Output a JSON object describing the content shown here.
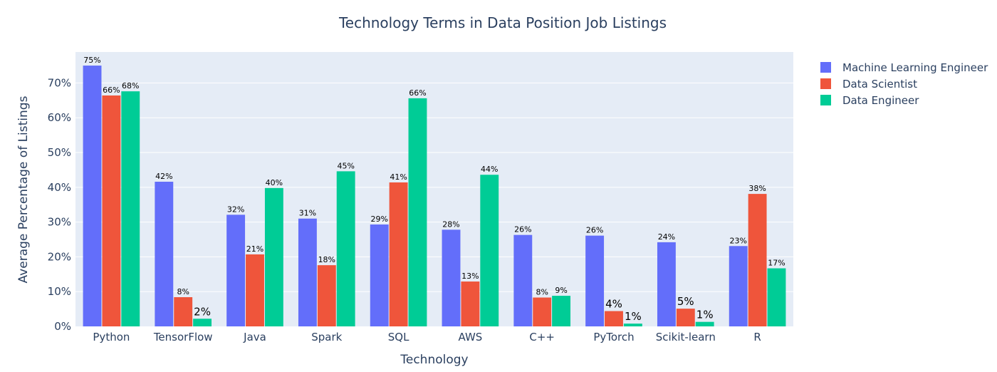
{
  "chart_data": {
    "type": "bar",
    "title": "Technology Terms in Data Position Job Listings",
    "xlabel": "Technology",
    "ylabel": "Average Percentage of Listings",
    "categories": [
      "Python",
      "TensorFlow",
      "Java",
      "Spark",
      "SQL",
      "AWS",
      "C++",
      "PyTorch",
      "Scikit-learn",
      "R"
    ],
    "series": [
      {
        "name": "Machine Learning Engineer",
        "color": "#636efa",
        "values": [
          75,
          41.6,
          32.1,
          31,
          29.3,
          27.8,
          26.3,
          26.1,
          24.2,
          23.1
        ],
        "labels": [
          "75%",
          "42%",
          "32%",
          "31%",
          "29%",
          "28%",
          "26%",
          "26%",
          "24%",
          "23%"
        ]
      },
      {
        "name": "Data Scientist",
        "color": "#ef553b",
        "values": [
          66.4,
          8.4,
          20.7,
          17.6,
          41.4,
          12.9,
          8.3,
          4.4,
          5.1,
          38.1
        ],
        "labels": [
          "66%",
          "8%",
          "21%",
          "18%",
          "41%",
          "13%",
          "8%",
          "4%",
          "5%",
          "38%"
        ]
      },
      {
        "name": "Data Engineer",
        "color": "#00cc96",
        "values": [
          67.6,
          2.2,
          39.8,
          44.6,
          65.6,
          43.6,
          8.8,
          0.8,
          1.3,
          16.7
        ],
        "labels": [
          "68%",
          "2%",
          "40%",
          "45%",
          "66%",
          "44%",
          "9%",
          "1%",
          "1%",
          "17%"
        ]
      }
    ],
    "ylim": [
      0,
      78.9
    ],
    "yticks": [
      0,
      10,
      20,
      30,
      40,
      50,
      60,
      70
    ],
    "ytick_labels": [
      "0%",
      "10%",
      "20%",
      "30%",
      "40%",
      "50%",
      "60%",
      "70%"
    ],
    "grid": true,
    "legend_position": "top-right",
    "plot_background": "#e5ecf6"
  }
}
